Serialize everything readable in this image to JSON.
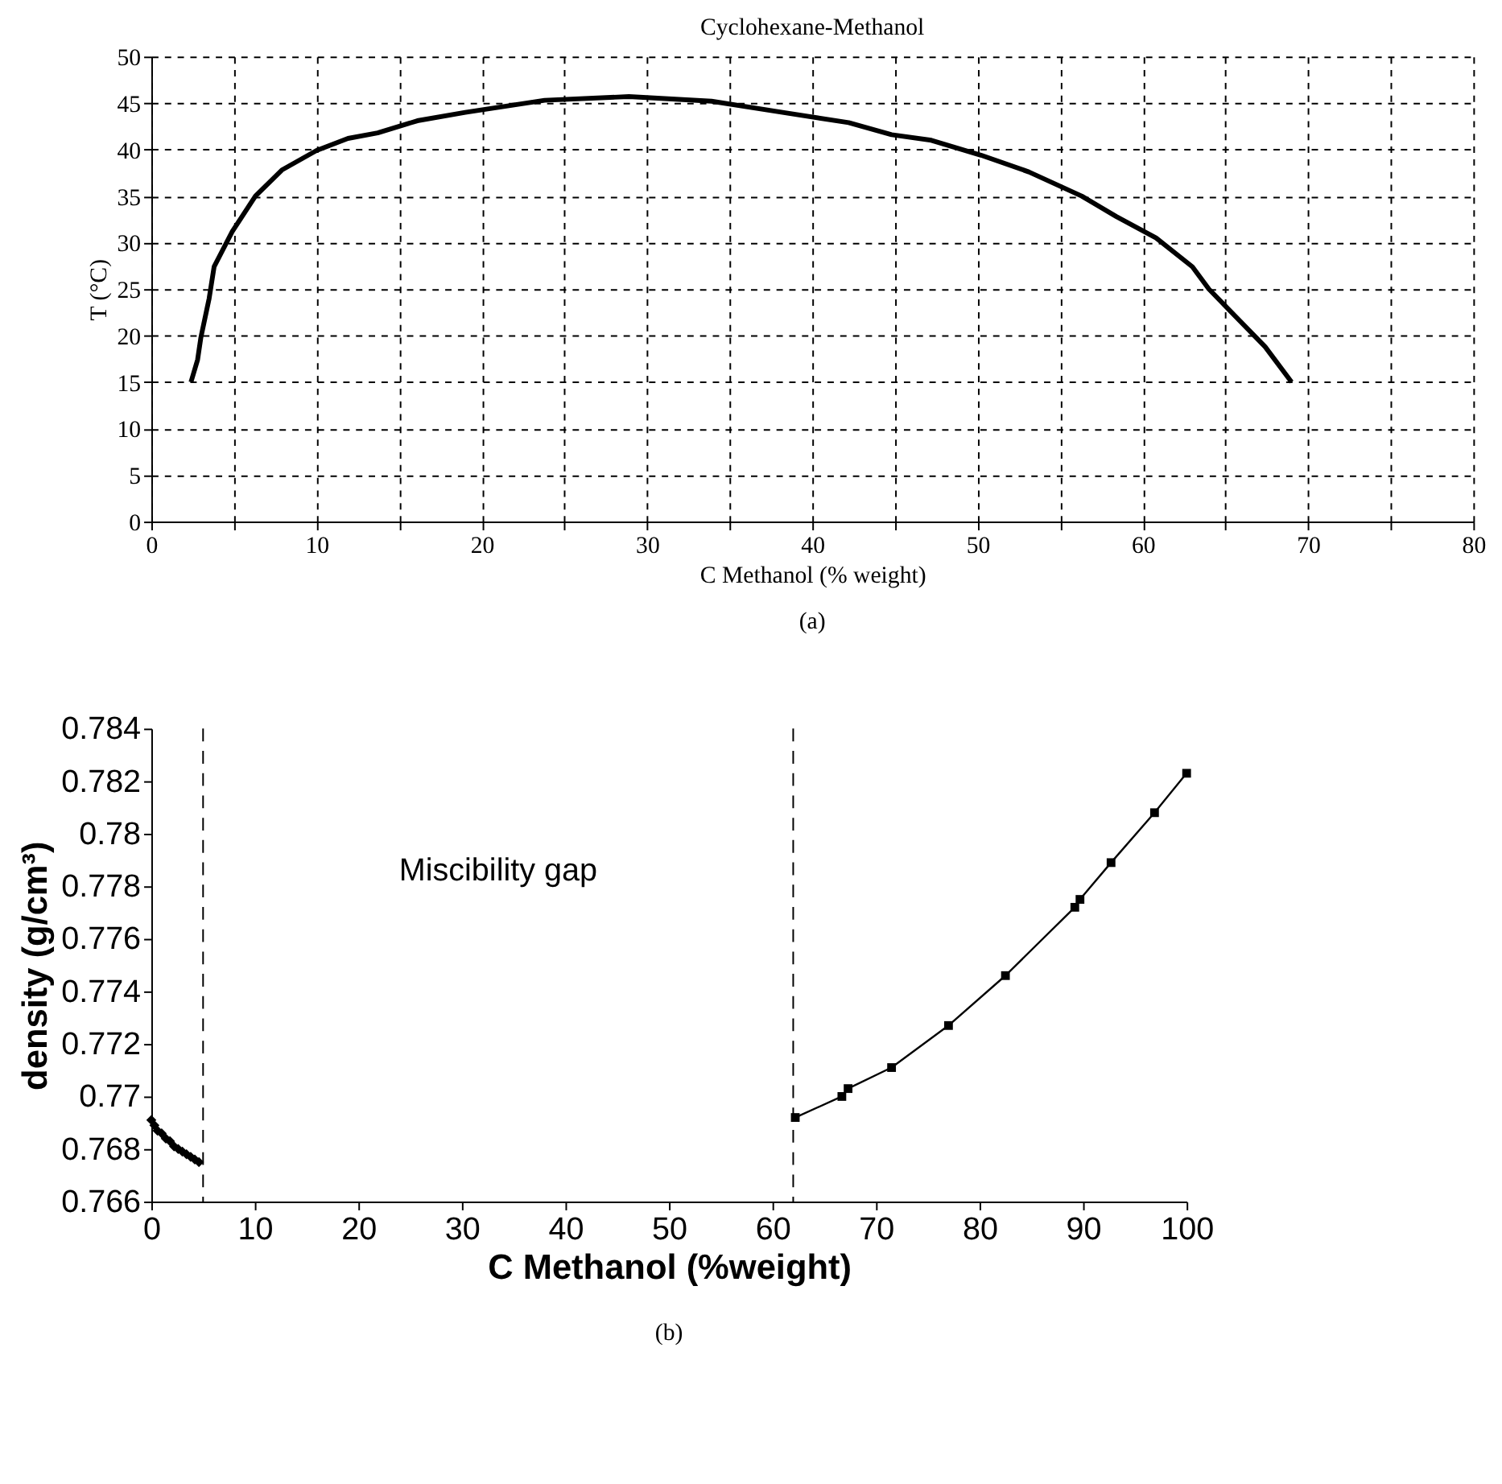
{
  "chart_data": [
    {
      "type": "line",
      "title": "Cyclohexane-Methanol",
      "xlabel": "C Methanol (% weight)",
      "ylabel": "T (°C)",
      "xlim": [
        0,
        80
      ],
      "xticks": [
        0,
        {
          "value": 5,
          "label": null
        },
        10,
        {
          "value": 15,
          "label": null
        },
        20,
        {
          "value": 25,
          "label": null
        },
        30,
        {
          "value": 35,
          "label": null
        },
        40,
        {
          "value": 45,
          "label": null
        },
        50,
        {
          "value": 55,
          "label": null
        },
        60,
        {
          "value": 65,
          "label": null
        },
        70,
        {
          "value": 75,
          "label": null
        },
        80
      ],
      "ylim": [
        0,
        50
      ],
      "yticks": [
        0,
        5,
        10,
        15,
        20,
        25,
        30,
        35,
        40,
        45,
        50
      ],
      "grid": true,
      "series": [
        {
          "color": "#000000",
          "x": [
            2.4,
            2.8,
            3.0,
            3.5,
            3.8,
            4.9,
            6.3,
            7.9,
            10,
            11.9,
            13.7,
            16.1,
            19,
            23.8,
            28.9,
            33.9,
            38.2,
            42.2,
            44.8,
            47.2,
            50.2,
            53.1,
            56.3,
            58.4,
            60.8,
            63,
            64,
            67.4,
            69
          ],
          "values": [
            15,
            17.4,
            19.8,
            24,
            27.4,
            31.2,
            35,
            37.8,
            39.9,
            41.2,
            41.8,
            43.1,
            44,
            45.3,
            45.7,
            45.2,
            44,
            42.9,
            41.6,
            41,
            39.4,
            37.6,
            35,
            32.8,
            30.5,
            27.4,
            25,
            18.8,
            15
          ]
        }
      ],
      "annotations": [
        "(a)"
      ]
    },
    {
      "type": "scatter",
      "xlabel": "C Methanol (%weight)",
      "ylabel": "density (g/cm³)",
      "xlim": [
        0,
        100
      ],
      "xticks": [
        0,
        10,
        20,
        30,
        40,
        50,
        60,
        70,
        80,
        90,
        100
      ],
      "ylim": [
        0.766,
        0.784
      ],
      "yticks": [
        0.766,
        0.768,
        0.77,
        0.772,
        0.774,
        0.776,
        0.778,
        0.78,
        0.782,
        0.784
      ],
      "series": [
        {
          "type": "scatter",
          "marker": "diamond",
          "color": "#000000",
          "x": [
            0,
            0.3,
            0.6,
            1,
            1.4,
            1.8,
            2.2,
            2.6,
            3,
            3.4,
            3.8,
            4.2,
            4.6
          ],
          "values": [
            0.7691,
            0.7689,
            0.7687,
            0.7686,
            0.7684,
            0.7683,
            0.7681,
            0.768,
            0.7679,
            0.7678,
            0.7677,
            0.7676,
            0.7675
          ]
        },
        {
          "type": "line",
          "marker": "square",
          "color": "#000000",
          "x": [
            62.2,
            66.7,
            67.3,
            71.5,
            77.0,
            82.5,
            89.2,
            89.7,
            92.7,
            96.9,
            100
          ],
          "values": [
            0.7692,
            0.77,
            0.7703,
            0.7711,
            0.7727,
            0.7746,
            0.7772,
            0.7775,
            0.7789,
            0.7808,
            0.7823
          ]
        }
      ],
      "ref_lines": [
        {
          "axis": "x",
          "value": 5,
          "line_style": "dashed",
          "color": "#000000"
        },
        {
          "axis": "x",
          "value": 62,
          "line_style": "dashed",
          "color": "#000000"
        }
      ],
      "annotations": [
        "Miscibility gap",
        "(b)"
      ]
    }
  ]
}
